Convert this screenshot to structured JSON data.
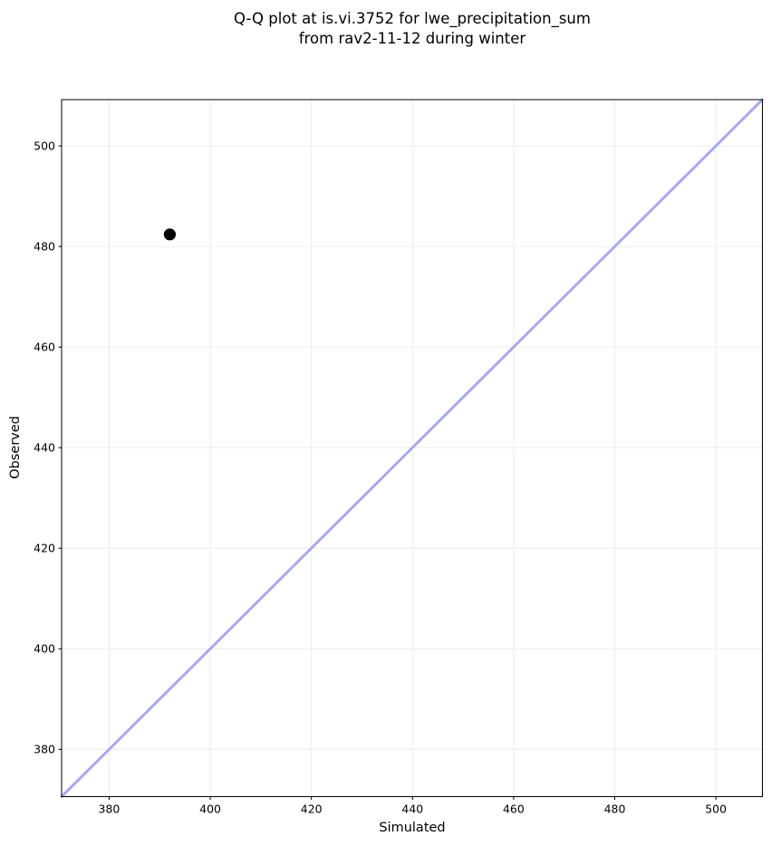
{
  "title": "Q-Q plot at is.vi.3752 for lwe_precipitation_sum\nfrom rav2-11-12 during winter",
  "chart_data": {
    "type": "scatter",
    "title": "Q-Q plot at is.vi.3752 for lwe_precipitation_sum from rav2-11-12 during winter",
    "xlabel": "Simulated",
    "ylabel": "Observed",
    "xlim": [
      370.6,
      509.2
    ],
    "ylim": [
      370.6,
      509.2
    ],
    "xticks": [
      380,
      400,
      420,
      440,
      460,
      480,
      500
    ],
    "yticks": [
      380,
      400,
      420,
      440,
      460,
      480,
      500
    ],
    "grid": true,
    "grid_color": "#ececec",
    "axis_color": "#000000",
    "background": "#ffffff",
    "legend": null,
    "series": [
      {
        "name": "identity-line",
        "type": "line",
        "color": "#a9a9ee",
        "width": 3,
        "points": [
          {
            "x": 370.6,
            "y": 370.6
          },
          {
            "x": 509.2,
            "y": 509.2
          }
        ]
      },
      {
        "name": "quantile-points",
        "type": "scatter",
        "color": "#000000",
        "marker_radius": 6.6,
        "points": [
          {
            "x": 392.0,
            "y": 482.4
          }
        ]
      }
    ]
  }
}
